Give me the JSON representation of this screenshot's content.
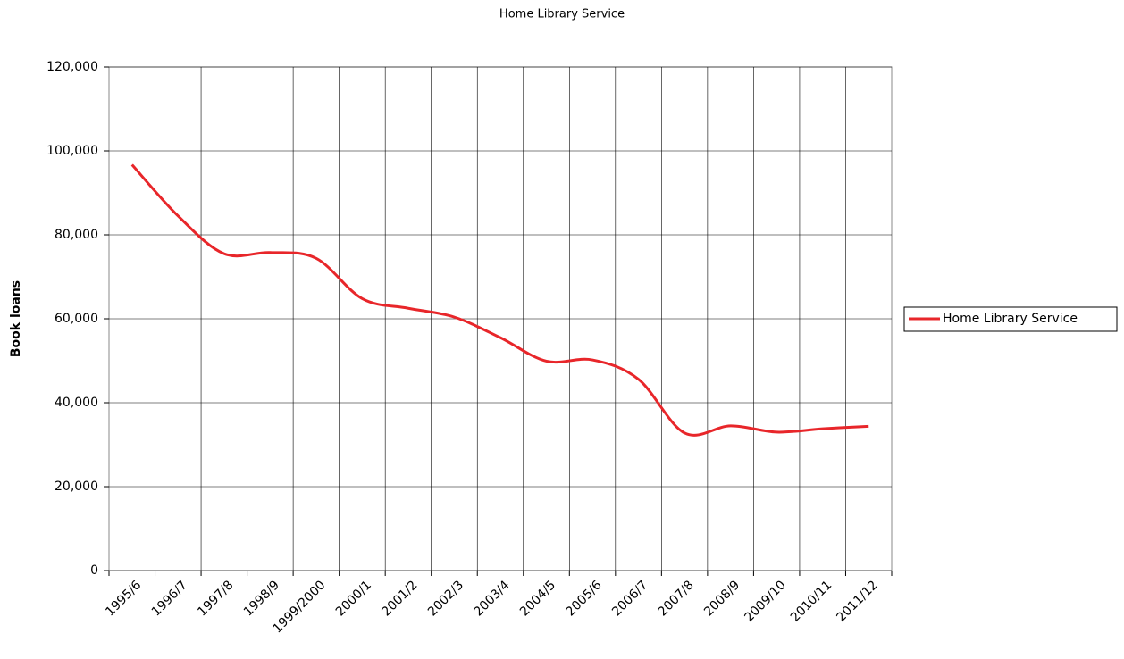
{
  "chart_data": {
    "type": "line",
    "title": "Home Library Service",
    "y_label": "Book loans",
    "categories": [
      "1995/6",
      "1996/7",
      "1997/8",
      "1998/9",
      "1999/2000",
      "2000/1",
      "2001/2",
      "2002/3",
      "2003/4",
      "2004/5",
      "2005/6",
      "2006/7",
      "2007/8",
      "2008/9",
      "2009/10",
      "2010/11",
      "2011/12"
    ],
    "series": [
      {
        "name": "Home Library Service",
        "color": "#e8262a",
        "values": [
          96700,
          84500,
          75500,
          75800,
          74400,
          64800,
          62500,
          60400,
          55500,
          49900,
          50200,
          45600,
          32800,
          34500,
          33000,
          33800,
          34400
        ]
      }
    ],
    "ylim": [
      0,
      120000
    ],
    "yticks": [
      0,
      {
        "value": 20000,
        "label": "20,000"
      },
      {
        "value": 40000,
        "label": "40,000"
      },
      {
        "value": 60000,
        "label": "60,000"
      },
      {
        "value": 80000,
        "label": "80,000"
      },
      {
        "value": 100000,
        "label": "100,000"
      },
      {
        "value": 120000,
        "label": "120,000"
      }
    ],
    "grid": true,
    "smooth": true,
    "legend": "right"
  }
}
